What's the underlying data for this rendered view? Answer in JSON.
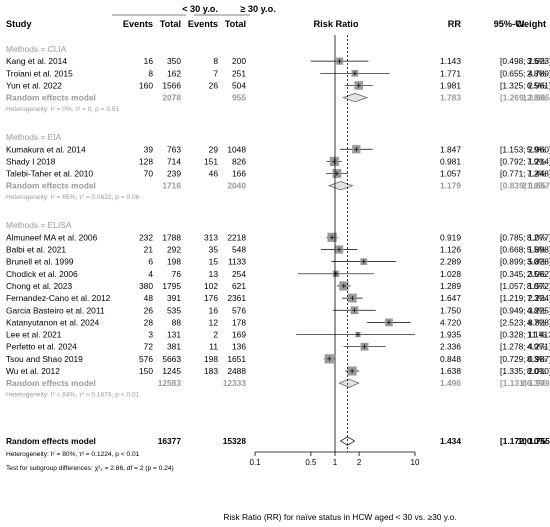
{
  "chart_data": {
    "type": "forest",
    "scale": "log",
    "xlim": [
      0.1,
      10
    ],
    "null_value": 1,
    "overall_reference_line": 1.434,
    "x_ticks": [
      "0.1",
      "0.5",
      "1",
      "2",
      "10"
    ],
    "xlabel": "Risk Ratio (RR) for naïve status in HCW aged < 30 vs. ≥30 y.o.",
    "header": {
      "study": "Study",
      "under30": "< 30 y.o.",
      "over30": "≥ 30 y.o.",
      "events1": "Events",
      "total1": "Total",
      "events2": "Events",
      "total2": "Total",
      "plot": "Risk Ratio",
      "rr": "RR",
      "ci": "95%-CI",
      "weight": "Weight"
    },
    "groups": [
      {
        "label": "Methods = CLIA",
        "studies": [
          {
            "study": "Kang et al. 2014",
            "e1": "16",
            "n1": "350",
            "e2": "8",
            "n2": "200",
            "rr": 1.143,
            "lo": 0.498,
            "hi": 2.623,
            "rr_text": "1.143",
            "ci_text": "[0.498; 2.623]",
            "weight": "3.5%"
          },
          {
            "study": "Troiani et al. 2015",
            "e1": "8",
            "n1": "162",
            "e2": "7",
            "n2": "251",
            "rr": 1.771,
            "lo": 0.655,
            "hi": 4.789,
            "rr_text": "1.771",
            "ci_text": "[0.655; 4.789]",
            "weight": "2.8%"
          },
          {
            "study": "Yun et al. 2022",
            "e1": "160",
            "n1": "1566",
            "e2": "26",
            "n2": "504",
            "rr": 1.981,
            "lo": 1.325,
            "hi": 2.961,
            "rr_text": "1.981",
            "ci_text": "[1.325; 2.961]",
            "weight": "6.5%"
          }
        ],
        "summary": {
          "label": "Random effects model",
          "n1": "2078",
          "n2": "955",
          "rr": 1.783,
          "lo": 1.269,
          "hi": 2.505,
          "rr_text": "1.783",
          "ci_text": "[1.269; 2.505]",
          "weight": "12.8%"
        },
        "heterogeneity": "Heterogeneity: I² = 0%, τ² = 0, p = 0.51"
      },
      {
        "label": "Methods = EIA",
        "studies": [
          {
            "study": "Kumakura et al. 2014",
            "e1": "39",
            "n1": "763",
            "e2": "29",
            "n2": "1048",
            "rr": 1.847,
            "lo": 1.153,
            "hi": 2.96,
            "rr_text": "1.847",
            "ci_text": "[1.153; 2.960]",
            "weight": "5.9%"
          },
          {
            "study": "Shady I 2018",
            "e1": "128",
            "n1": "714",
            "e2": "151",
            "n2": "826",
            "rr": 0.981,
            "lo": 0.792,
            "hi": 1.214,
            "rr_text": "0.981",
            "ci_text": "[0.792; 1.214]",
            "weight": "7.9%"
          },
          {
            "study": "Talebi-Taher et al. 2010",
            "e1": "70",
            "n1": "239",
            "e2": "46",
            "n2": "166",
            "rr": 1.057,
            "lo": 0.771,
            "hi": 1.448,
            "rr_text": "1.057",
            "ci_text": "[0.771; 1.448]",
            "weight": "7.2%"
          }
        ],
        "summary": {
          "label": "Random effects model",
          "n1": "1716",
          "n2": "2040",
          "rr": 1.179,
          "lo": 0.839,
          "hi": 1.657,
          "rr_text": "1.179",
          "ci_text": "[0.839; 1.657]",
          "weight": "21.0%"
        },
        "heterogeneity": "Heterogeneity: I² = 65%, τ² = 0.0622, p = 0.06"
      },
      {
        "label": "Methods = ELISA",
        "studies": [
          {
            "study": "Almuneef MA et al. 2006",
            "e1": "232",
            "n1": "1788",
            "e2": "313",
            "n2": "2218",
            "rr": 0.919,
            "lo": 0.785,
            "hi": 1.077,
            "rr_text": "0.919",
            "ci_text": "[0.785; 1.077]",
            "weight": "8.2%"
          },
          {
            "study": "Balbi et al. 2021",
            "e1": "21",
            "n1": "292",
            "e2": "35",
            "n2": "548",
            "rr": 1.126,
            "lo": 0.668,
            "hi": 1.898,
            "rr_text": "1.126",
            "ci_text": "[0.668; 1.898]",
            "weight": "5.5%"
          },
          {
            "study": "Brunell et al. 1999",
            "e1": "6",
            "n1": "198",
            "e2": "15",
            "n2": "1133",
            "rr": 2.289,
            "lo": 0.899,
            "hi": 5.828,
            "rr_text": "2.289",
            "ci_text": "[0.899; 5.828]",
            "weight": "3.0%"
          },
          {
            "study": "Chodick et al. 2006",
            "e1": "4",
            "n1": "76",
            "e2": "13",
            "n2": "254",
            "rr": 1.028,
            "lo": 0.345,
            "hi": 3.062,
            "rr_text": "1.028",
            "ci_text": "[0.345; 3.062]",
            "weight": "2.5%"
          },
          {
            "study": "Chong et al. 2023",
            "e1": "380",
            "n1": "1795",
            "e2": "102",
            "n2": "621",
            "rr": 1.289,
            "lo": 1.057,
            "hi": 1.572,
            "rr_text": "1.289",
            "ci_text": "[1.057; 1.572]",
            "weight": "8.0%"
          },
          {
            "study": "Fernandez-Cano et al. 2012",
            "e1": "48",
            "n1": "391",
            "e2": "176",
            "n2": "2361",
            "rr": 1.647,
            "lo": 1.219,
            "hi": 2.224,
            "rr_text": "1.647",
            "ci_text": "[1.219; 2.224]",
            "weight": "7.3%"
          },
          {
            "study": "Garcia Basteiro et al. 2011",
            "e1": "26",
            "n1": "535",
            "e2": "16",
            "n2": "576",
            "rr": 1.75,
            "lo": 0.949,
            "hi": 3.225,
            "rr_text": "1.750",
            "ci_text": "[0.949; 3.225]",
            "weight": "4.8%"
          },
          {
            "study": "Katanyutanon et al. 2024",
            "e1": "28",
            "n1": "88",
            "e2": "12",
            "n2": "178",
            "rr": 4.72,
            "lo": 2.523,
            "hi": 8.828,
            "rr_text": "4.720",
            "ci_text": "[2.523; 8.828]",
            "weight": "4.7%"
          },
          {
            "study": "Lee et al. 2021",
            "e1": "3",
            "n1": "131",
            "e2": "2",
            "n2": "169",
            "rr": 1.935,
            "lo": 0.328,
            "hi": 11.413,
            "rr_text": "1.935",
            "ci_text": "[0.328; 11.413]",
            "weight": "1.1%"
          },
          {
            "study": "Perfetto et al. 2024",
            "e1": "72",
            "n1": "381",
            "e2": "11",
            "n2": "136",
            "rr": 2.336,
            "lo": 1.278,
            "hi": 4.271,
            "rr_text": "2.336",
            "ci_text": "[1.278; 4.271]",
            "weight": "4.9%"
          },
          {
            "study": "Tsou and Shao 2019",
            "e1": "576",
            "n1": "5663",
            "e2": "198",
            "n2": "1651",
            "rr": 0.848,
            "lo": 0.729,
            "hi": 0.987,
            "rr_text": "0.848",
            "ci_text": "[0.729; 0.987]",
            "weight": "8.3%"
          },
          {
            "study": "Wu et al. 2012",
            "e1": "150",
            "n1": "1245",
            "e2": "183",
            "n2": "2488",
            "rr": 1.638,
            "lo": 1.335,
            "hi": 2.01,
            "rr_text": "1.638",
            "ci_text": "[1.335; 2.010]",
            "weight": "8.0%"
          }
        ],
        "summary": {
          "label": "Random effects model",
          "n1": "12583",
          "n2": "12333",
          "rr": 1.496,
          "lo": 1.131,
          "hi": 1.979,
          "rr_text": "1.496",
          "ci_text": "[1.131; 1.979]",
          "weight": "66.3%"
        },
        "heterogeneity": "Heterogeneity: I² = 84%, τ² = 0.1673, p < 0.01"
      }
    ],
    "overall": {
      "label": "Random effects model",
      "n1": "16377",
      "n2": "15328",
      "rr": 1.434,
      "lo": 1.172,
      "hi": 1.755,
      "rr_text": "1.434",
      "ci_text": "[1.172; 1.755]",
      "weight": "100.0%"
    },
    "overall_heterogeneity": "Heterogeneity: I² = 80%, τ² = 0.1224, p < 0.01",
    "subgroup_test": "Test for subgroup differences: χ²₂ = 2.86, df = 2 (p = 0.24)",
    "colors": {
      "text": "#000000",
      "muted": "#9a9a9a",
      "box": "#9a9a9a"
    }
  }
}
